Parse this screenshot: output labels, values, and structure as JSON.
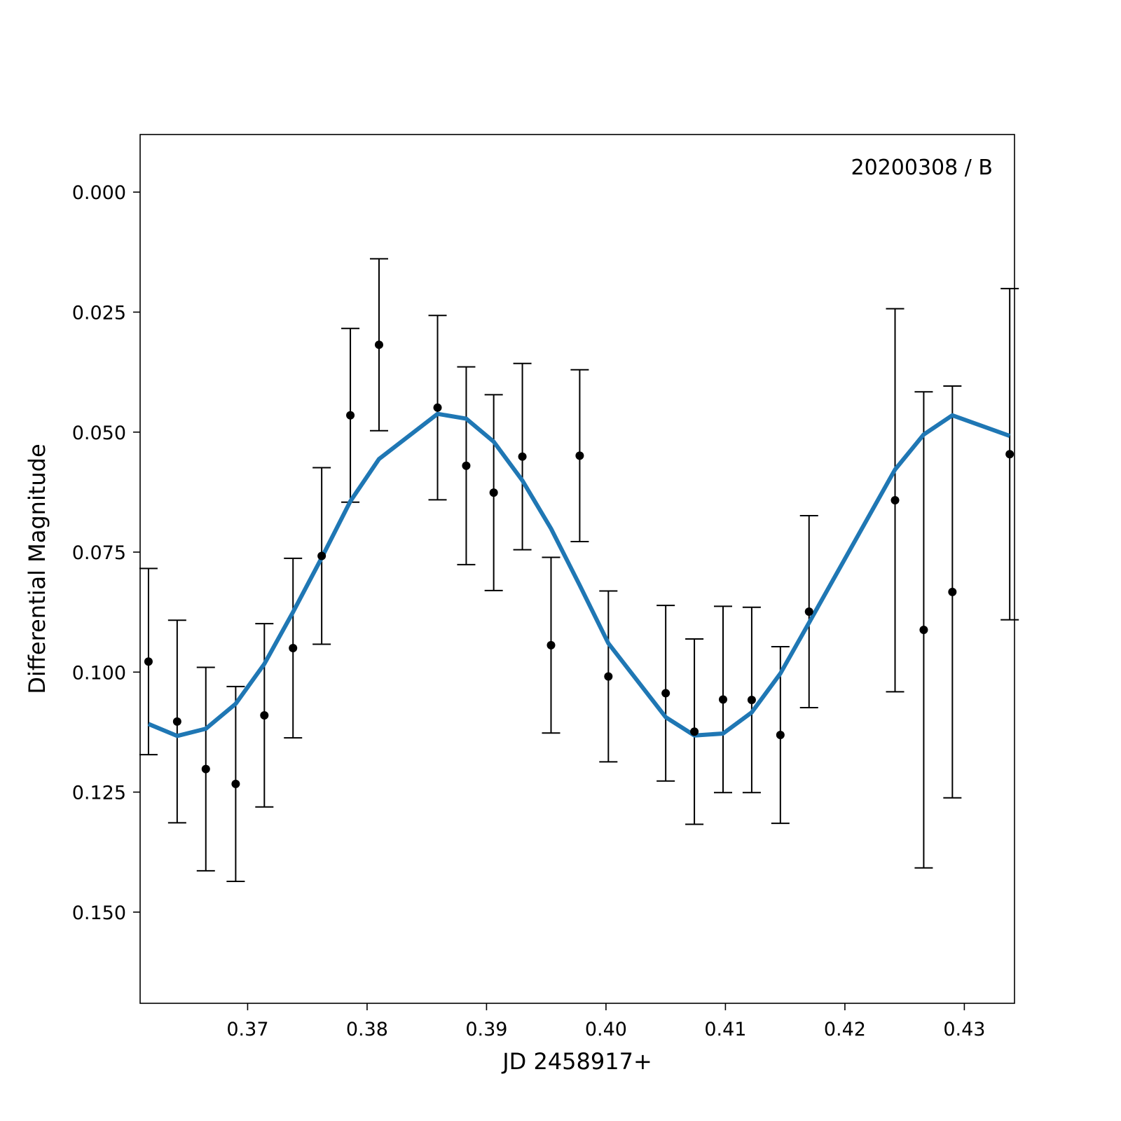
{
  "chart_data": {
    "type": "scatter",
    "annotation": "20200308 / B",
    "xlabel": "JD 2458917+",
    "ylabel": "Differential Magnitude",
    "xlim": [
      0.361,
      0.4342
    ],
    "ylim": [
      0.169,
      -0.012
    ],
    "y_inverted": true,
    "grid": false,
    "xticks": [
      {
        "value": 0.37,
        "label": "0.37"
      },
      {
        "value": 0.38,
        "label": "0.38"
      },
      {
        "value": 0.39,
        "label": "0.39"
      },
      {
        "value": 0.4,
        "label": "0.40"
      },
      {
        "value": 0.41,
        "label": "0.41"
      },
      {
        "value": 0.42,
        "label": "0.42"
      },
      {
        "value": 0.43,
        "label": "0.43"
      }
    ],
    "yticks": [
      {
        "value": 0.0,
        "label": "0.000"
      },
      {
        "value": 0.025,
        "label": "0.025"
      },
      {
        "value": 0.05,
        "label": "0.050"
      },
      {
        "value": 0.075,
        "label": "0.075"
      },
      {
        "value": 0.1,
        "label": "0.100"
      },
      {
        "value": 0.125,
        "label": "0.125"
      },
      {
        "value": 0.15,
        "label": "0.150"
      }
    ],
    "points": [
      {
        "x": 0.3617,
        "y": 0.0978,
        "err": 0.0194
      },
      {
        "x": 0.3641,
        "y": 0.1103,
        "err": 0.0211
      },
      {
        "x": 0.3665,
        "y": 0.1202,
        "err": 0.0212
      },
      {
        "x": 0.369,
        "y": 0.1233,
        "err": 0.0203
      },
      {
        "x": 0.3714,
        "y": 0.109,
        "err": 0.0191
      },
      {
        "x": 0.3738,
        "y": 0.095,
        "err": 0.0187
      },
      {
        "x": 0.3762,
        "y": 0.0758,
        "err": 0.0184
      },
      {
        "x": 0.3786,
        "y": 0.0465,
        "err": 0.0181
      },
      {
        "x": 0.381,
        "y": 0.0318,
        "err": 0.0179
      },
      {
        "x": 0.3859,
        "y": 0.0449,
        "err": 0.0192
      },
      {
        "x": 0.3883,
        "y": 0.057,
        "err": 0.0206
      },
      {
        "x": 0.3906,
        "y": 0.0626,
        "err": 0.0204
      },
      {
        "x": 0.393,
        "y": 0.0551,
        "err": 0.0194
      },
      {
        "x": 0.3954,
        "y": 0.0944,
        "err": 0.0183
      },
      {
        "x": 0.3978,
        "y": 0.0549,
        "err": 0.0179
      },
      {
        "x": 0.4002,
        "y": 0.1009,
        "err": 0.0178
      },
      {
        "x": 0.405,
        "y": 0.1044,
        "err": 0.0183
      },
      {
        "x": 0.4074,
        "y": 0.1124,
        "err": 0.0193
      },
      {
        "x": 0.4098,
        "y": 0.1057,
        "err": 0.0194
      },
      {
        "x": 0.4122,
        "y": 0.1058,
        "err": 0.0193
      },
      {
        "x": 0.4146,
        "y": 0.1131,
        "err": 0.0184
      },
      {
        "x": 0.417,
        "y": 0.0874,
        "err": 0.02
      },
      {
        "x": 0.4242,
        "y": 0.0642,
        "err": 0.0399
      },
      {
        "x": 0.4266,
        "y": 0.0912,
        "err": 0.0496
      },
      {
        "x": 0.429,
        "y": 0.0833,
        "err": 0.0429
      },
      {
        "x": 0.4338,
        "y": 0.0546,
        "err": 0.0345
      }
    ],
    "model": {
      "x": [
        0.3617,
        0.3641,
        0.3665,
        0.369,
        0.3714,
        0.3738,
        0.3762,
        0.3786,
        0.381,
        0.3859,
        0.3883,
        0.3906,
        0.393,
        0.3954,
        0.3978,
        0.4002,
        0.405,
        0.4074,
        0.4098,
        0.4122,
        0.4146,
        0.417,
        0.4242,
        0.4266,
        0.429,
        0.4338
      ],
      "y": [
        0.1108,
        0.1133,
        0.1118,
        0.1066,
        0.0983,
        0.0875,
        0.0762,
        0.0644,
        0.0556,
        0.0462,
        0.0472,
        0.052,
        0.0601,
        0.0701,
        0.0819,
        0.094,
        0.1094,
        0.1132,
        0.1128,
        0.1084,
        0.1003,
        0.0897,
        0.0578,
        0.0505,
        0.0465,
        0.0508
      ],
      "color": "#1f77b4"
    },
    "marker_color": "#000000"
  }
}
